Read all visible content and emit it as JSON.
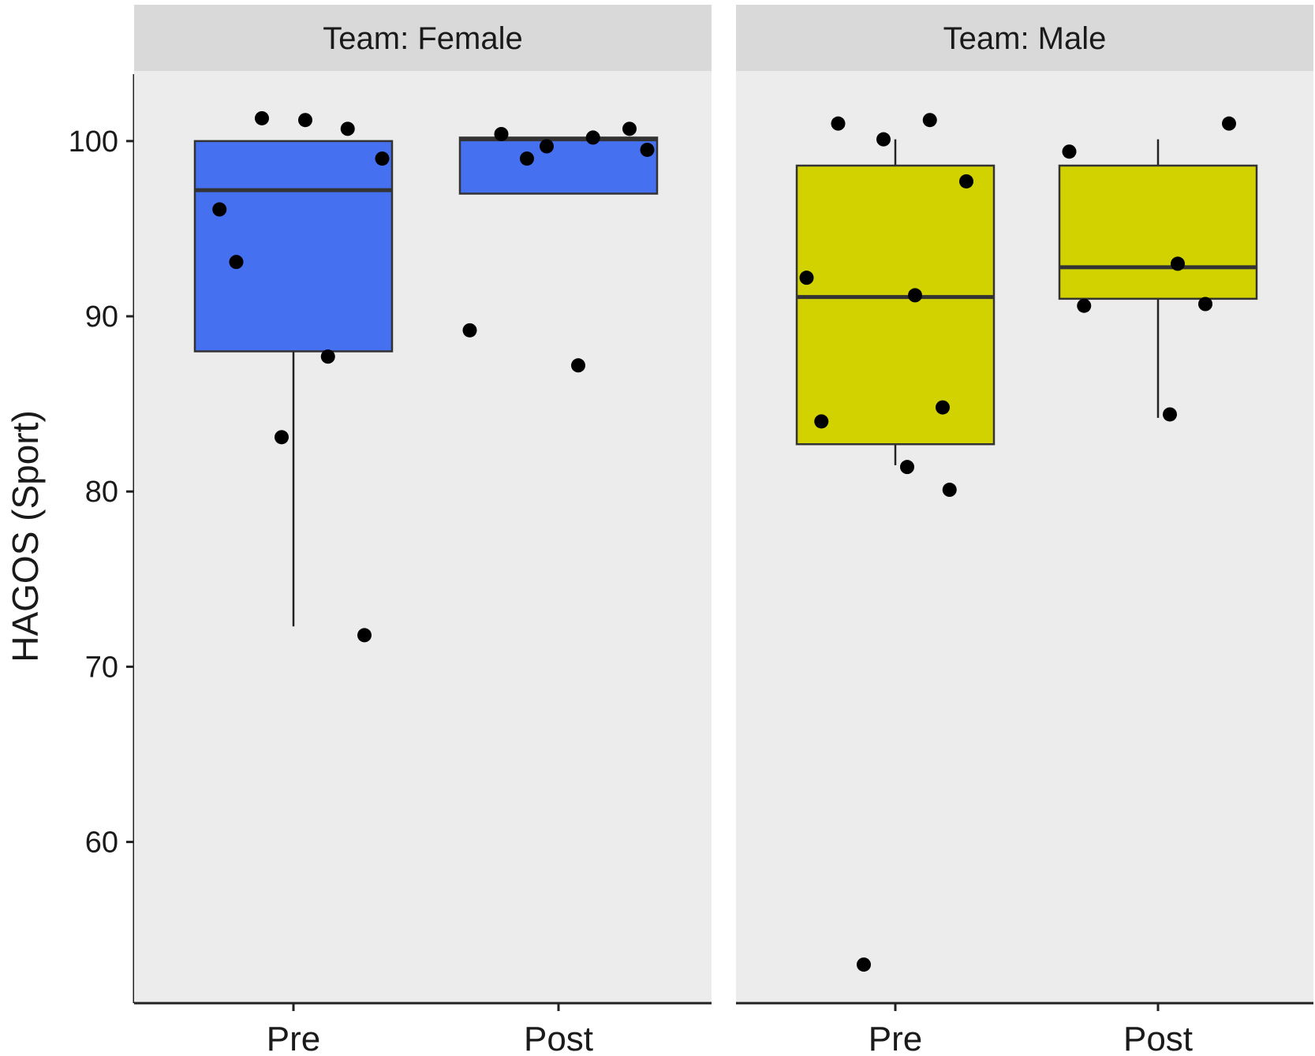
{
  "chart_data": {
    "type": "box",
    "ylabel": "HAGOS (Sport)",
    "xlabel": "",
    "ylim": [
      50.8,
      104
    ],
    "yticks": [
      60,
      70,
      80,
      90,
      100
    ],
    "categories": [
      "Pre",
      "Post"
    ],
    "grid": false,
    "legend": "none",
    "panels": [
      {
        "title": "Team: Female",
        "fill": "#4570f0",
        "boxes": [
          {
            "category": "Pre",
            "lower_whisker": 72.3,
            "q1": 88,
            "median": 97.2,
            "q3": 100,
            "upper_whisker": 100,
            "points": [
              96.1,
              101.2,
              100.7,
              101.3,
              99,
              93.1,
              87.7,
              83.1,
              71.8
            ]
          },
          {
            "category": "Post",
            "lower_whisker": 97,
            "q1": 97,
            "median": 100.1,
            "q3": 100.2,
            "upper_whisker": 100.2,
            "points": [
              99,
              99.5,
              100.4,
              100.2,
              99.7,
              100.7,
              89.2,
              87.2
            ]
          }
        ]
      },
      {
        "title": "Team: Male",
        "fill": "#d2d200",
        "boxes": [
          {
            "category": "Pre",
            "lower_whisker": 81.5,
            "q1": 82.7,
            "median": 91.1,
            "q3": 98.6,
            "upper_whisker": 100.1,
            "points": [
              101,
              101.2,
              100.1,
              97.7,
              92.2,
              91.2,
              84.8,
              84,
              81.4,
              80.1,
              53
            ]
          },
          {
            "category": "Post",
            "lower_whisker": 84.2,
            "q1": 91,
            "median": 92.8,
            "q3": 98.6,
            "upper_whisker": 100.1,
            "points": [
              101,
              99.4,
              93,
              90.7,
              90.6,
              84.4
            ]
          }
        ]
      }
    ]
  }
}
